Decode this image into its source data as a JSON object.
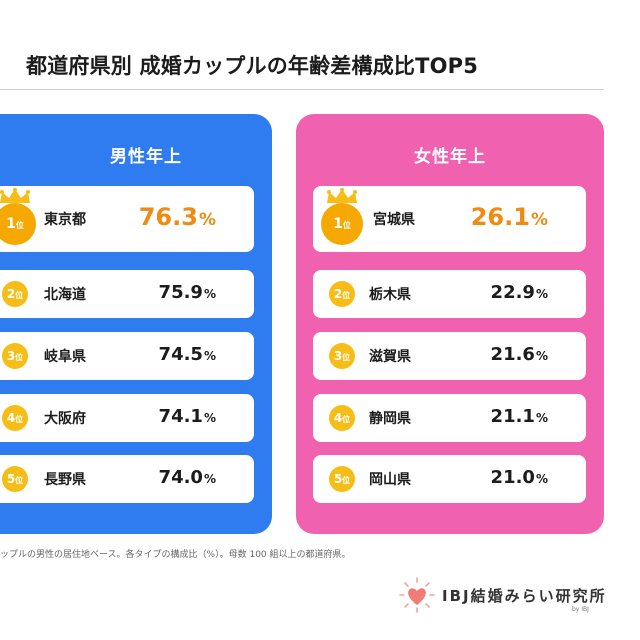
{
  "title": "都道府県別 成婚カップルの年齢差構成比TOP5",
  "footnote": "ップルの男性の居住地ベース。各タイプの構成比（%）。母数 100 組以上の都道府県。",
  "brand": {
    "name": "IBJ結婚みらい研究所",
    "sub": "by IBJ"
  },
  "colors": {
    "male_panel": "#2f7bf0",
    "female_panel": "#f062b0",
    "rank_badge": "#f6bd16",
    "top_value": "#ef8a12"
  },
  "chart_data": [
    {
      "type": "table",
      "title": "男性年上",
      "unit": "%",
      "rank_unit": "位",
      "rows": [
        {
          "rank": "1",
          "prefecture": "東京都",
          "value": "76.3"
        },
        {
          "rank": "2",
          "prefecture": "北海道",
          "value": "75.9"
        },
        {
          "rank": "3",
          "prefecture": "岐阜県",
          "value": "74.5"
        },
        {
          "rank": "4",
          "prefecture": "大阪府",
          "value": "74.1"
        },
        {
          "rank": "5",
          "prefecture": "長野県",
          "value": "74.0"
        }
      ]
    },
    {
      "type": "table",
      "title": "女性年上",
      "unit": "%",
      "rank_unit": "位",
      "rows": [
        {
          "rank": "1",
          "prefecture": "宮城県",
          "value": "26.1"
        },
        {
          "rank": "2",
          "prefecture": "栃木県",
          "value": "22.9"
        },
        {
          "rank": "3",
          "prefecture": "滋賀県",
          "value": "21.6"
        },
        {
          "rank": "4",
          "prefecture": "静岡県",
          "value": "21.1"
        },
        {
          "rank": "5",
          "prefecture": "岡山県",
          "value": "21.0"
        }
      ]
    }
  ]
}
